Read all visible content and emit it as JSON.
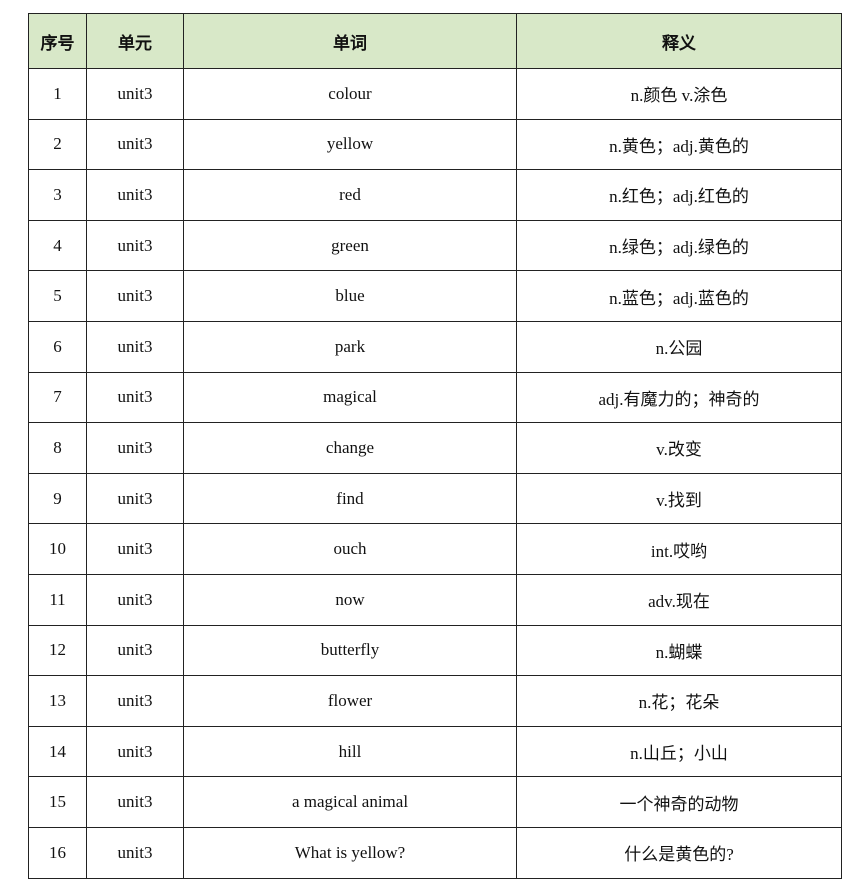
{
  "table": {
    "headers": {
      "no": "序号",
      "unit": "单元",
      "word": "单词",
      "meaning": "释义"
    },
    "rows": [
      {
        "no": "1",
        "unit": "unit3",
        "word": "colour",
        "meaning": "n.颜色  v.涂色"
      },
      {
        "no": "2",
        "unit": "unit3",
        "word": "yellow",
        "meaning": "n.黄色；adj.黄色的"
      },
      {
        "no": "3",
        "unit": "unit3",
        "word": "red",
        "meaning": "n.红色；adj.红色的"
      },
      {
        "no": "4",
        "unit": "unit3",
        "word": "green",
        "meaning": "n.绿色；adj.绿色的"
      },
      {
        "no": "5",
        "unit": "unit3",
        "word": "blue",
        "meaning": "n.蓝色；adj.蓝色的"
      },
      {
        "no": "6",
        "unit": "unit3",
        "word": "park",
        "meaning": "n.公园"
      },
      {
        "no": "7",
        "unit": "unit3",
        "word": "magical",
        "meaning": "adj.有魔力的；神奇的"
      },
      {
        "no": "8",
        "unit": "unit3",
        "word": "change",
        "meaning": "v.改变"
      },
      {
        "no": "9",
        "unit": "unit3",
        "word": "find",
        "meaning": "v.找到"
      },
      {
        "no": "10",
        "unit": "unit3",
        "word": "ouch",
        "meaning": "int.哎哟"
      },
      {
        "no": "11",
        "unit": "unit3",
        "word": "now",
        "meaning": "adv.现在"
      },
      {
        "no": "12",
        "unit": "unit3",
        "word": "butterfly",
        "meaning": "n.蝴蝶"
      },
      {
        "no": "13",
        "unit": "unit3",
        "word": "flower",
        "meaning": "n.花；花朵"
      },
      {
        "no": "14",
        "unit": "unit3",
        "word": "hill",
        "meaning": "n.山丘；小山"
      },
      {
        "no": "15",
        "unit": "unit3",
        "word": "a magical animal",
        "meaning": "一个神奇的动物"
      },
      {
        "no": "16",
        "unit": "unit3",
        "word": "What is yellow?",
        "meaning": "什么是黄色的?"
      }
    ]
  }
}
